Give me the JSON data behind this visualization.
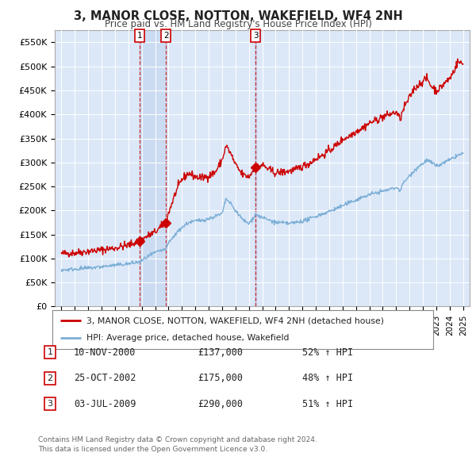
{
  "title": "3, MANOR CLOSE, NOTTON, WAKEFIELD, WF4 2NH",
  "subtitle": "Price paid vs. HM Land Registry's House Price Index (HPI)",
  "background_color": "#ffffff",
  "plot_bg_color": "#dce8f8",
  "red_line_color": "#cc0000",
  "blue_line_color": "#7aaed6",
  "shade_color": "#c5d8f0",
  "ylim": [
    0,
    575000
  ],
  "yticks": [
    0,
    50000,
    100000,
    150000,
    200000,
    250000,
    300000,
    350000,
    400000,
    450000,
    500000,
    550000
  ],
  "ytick_labels": [
    "£0",
    "£50K",
    "£100K",
    "£150K",
    "£200K",
    "£250K",
    "£300K",
    "£350K",
    "£400K",
    "£450K",
    "£500K",
    "£550K"
  ],
  "sale_events": [
    {
      "label": "1",
      "date": "10-NOV-2000",
      "price": 137000,
      "pct": "52% ↑ HPI",
      "x_year": 2000.86
    },
    {
      "label": "2",
      "date": "25-OCT-2002",
      "price": 175000,
      "pct": "48% ↑ HPI",
      "x_year": 2002.81
    },
    {
      "label": "3",
      "date": "03-JUL-2009",
      "price": 290000,
      "pct": "51% ↑ HPI",
      "x_year": 2009.5
    }
  ],
  "legend_line1": "3, MANOR CLOSE, NOTTON, WAKEFIELD, WF4 2NH (detached house)",
  "legend_line2": "HPI: Average price, detached house, Wakefield",
  "footer1": "Contains HM Land Registry data © Crown copyright and database right 2024.",
  "footer2": "This data is licensed under the Open Government Licence v3.0.",
  "xlim_start": 1994.5,
  "xlim_end": 2025.5
}
